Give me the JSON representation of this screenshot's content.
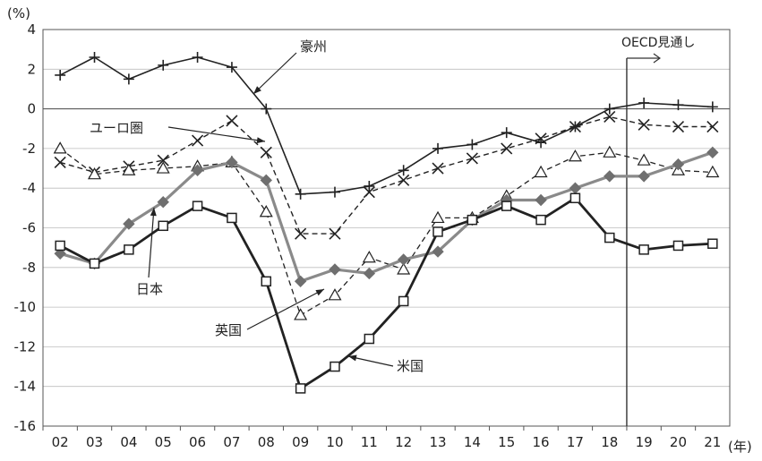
{
  "chart_data": {
    "type": "line",
    "y_unit_label": "(%)",
    "x_unit_label": "(年)",
    "categories": [
      "02",
      "03",
      "04",
      "05",
      "06",
      "07",
      "08",
      "09",
      "10",
      "11",
      "12",
      "13",
      "14",
      "15",
      "16",
      "17",
      "18",
      "19",
      "20",
      "21"
    ],
    "ylim": [
      -16,
      4
    ],
    "yticks": [
      4,
      2,
      0,
      -2,
      -4,
      -6,
      -8,
      -10,
      -12,
      -14,
      -16
    ],
    "grid": true,
    "forecast_label": "OECD見通し",
    "forecast_start_index": 17,
    "series": [
      {
        "name": "豪州",
        "marker": "plus",
        "style": "solid",
        "color": "#222222",
        "width": 1.6,
        "values": [
          1.7,
          2.6,
          1.5,
          2.2,
          2.6,
          2.1,
          0.0,
          -4.3,
          -4.2,
          -3.9,
          -3.1,
          -2.0,
          -1.8,
          -1.2,
          -1.7,
          -0.9,
          0.0,
          0.3,
          0.2,
          0.1
        ]
      },
      {
        "name": "ユーロ圏",
        "marker": "x",
        "style": "dashed",
        "color": "#222222",
        "width": 1.4,
        "values": [
          -2.7,
          -3.2,
          -2.9,
          -2.6,
          -1.6,
          -0.6,
          -2.2,
          -6.3,
          -6.3,
          -4.2,
          -3.6,
          -3.0,
          -2.5,
          -2.0,
          -1.5,
          -0.9,
          -0.4,
          -0.8,
          -0.9,
          -0.9
        ]
      },
      {
        "name": "英国",
        "marker": "triangle",
        "style": "dashed",
        "color": "#222222",
        "width": 1.3,
        "values": [
          -2.0,
          -3.3,
          -3.1,
          -3.0,
          -2.9,
          -2.7,
          -5.2,
          -10.4,
          -9.4,
          -7.5,
          -8.1,
          -5.5,
          -5.5,
          -4.4,
          -3.2,
          -2.4,
          -2.2,
          -2.6,
          -3.1,
          -3.2
        ]
      },
      {
        "name": "日本",
        "marker": "diamond",
        "style": "solid",
        "color": "#8a8a8a",
        "marker_color": "#6f6f6f",
        "width": 3.2,
        "values": [
          -7.3,
          -7.8,
          -5.8,
          -4.7,
          -3.1,
          -2.7,
          -3.6,
          -8.7,
          -8.1,
          -8.3,
          -7.6,
          -7.2,
          -5.6,
          -4.6,
          -4.6,
          -4.0,
          -3.4,
          -3.4,
          -2.8,
          -2.2
        ]
      },
      {
        "name": "米国",
        "marker": "square",
        "style": "solid",
        "color": "#222222",
        "width": 2.8,
        "values": [
          -6.9,
          -7.8,
          -7.1,
          -5.9,
          -4.9,
          -5.5,
          -8.7,
          -14.1,
          -13.0,
          -11.6,
          -9.7,
          -6.2,
          -5.6,
          -4.9,
          -5.6,
          -4.5,
          -6.5,
          -7.1,
          -6.9,
          -6.8
        ]
      }
    ],
    "series_labels": [
      {
        "text": "豪州",
        "series": "豪州",
        "at_index": 6.2,
        "at_value": 1.0
      },
      {
        "text": "ユーロ圏",
        "series": "ユーロ圏",
        "at_index": 3.5,
        "at_value": -1.9
      },
      {
        "text": "日本",
        "series": "日本",
        "at_index": 2.3,
        "at_value": -5.6
      },
      {
        "text": "英国",
        "series": "英国",
        "at_index": 6.35,
        "at_value": -9.4
      },
      {
        "text": "米国",
        "series": "米国",
        "at_index": 8.6,
        "at_value": -12.6
      }
    ]
  }
}
